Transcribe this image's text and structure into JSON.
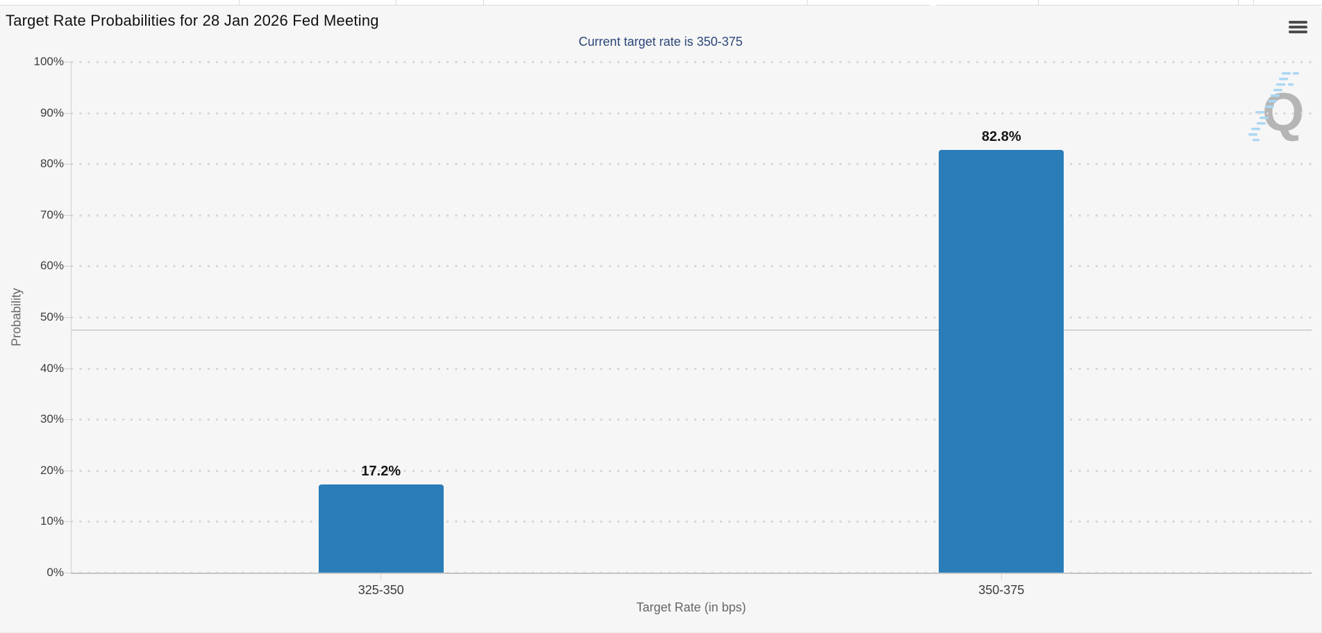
{
  "header": {
    "title": "Target Rate Probabilities for 28 Jan 2026 Fed Meeting",
    "subtitle": "Current target rate is 350-375",
    "menu_icon": "hamburger-menu-icon"
  },
  "chart_data": {
    "type": "bar",
    "title": "Target Rate Probabilities for 28 Jan 2026 Fed Meeting",
    "subtitle": "Current target rate is 350-375",
    "categories": [
      "325-350",
      "350-375"
    ],
    "values": [
      17.2,
      82.8
    ],
    "value_labels": [
      "17.2%",
      "82.8%"
    ],
    "xlabel": "Target Rate (in bps)",
    "ylabel": "Probability",
    "ylim": [
      0,
      100
    ],
    "ytick_step": 10,
    "ytick_suffix": "%",
    "grid": "dotted horizontal gridlines every 10%",
    "legend": "none",
    "plot_line_y": 47.6
  },
  "colors": {
    "bar": "#2a7db9",
    "subtitle_text": "#2a4578",
    "title_text": "#111111",
    "axis_title_text": "#666666",
    "tick_label_text": "#3c3c3c",
    "grid_dot": "#d7d7d7",
    "plot_line": "#bcbcbc",
    "watermark_q": "#b5b5b5",
    "watermark_dash": "#abd7f3"
  },
  "watermark": {
    "letter": "Q"
  }
}
